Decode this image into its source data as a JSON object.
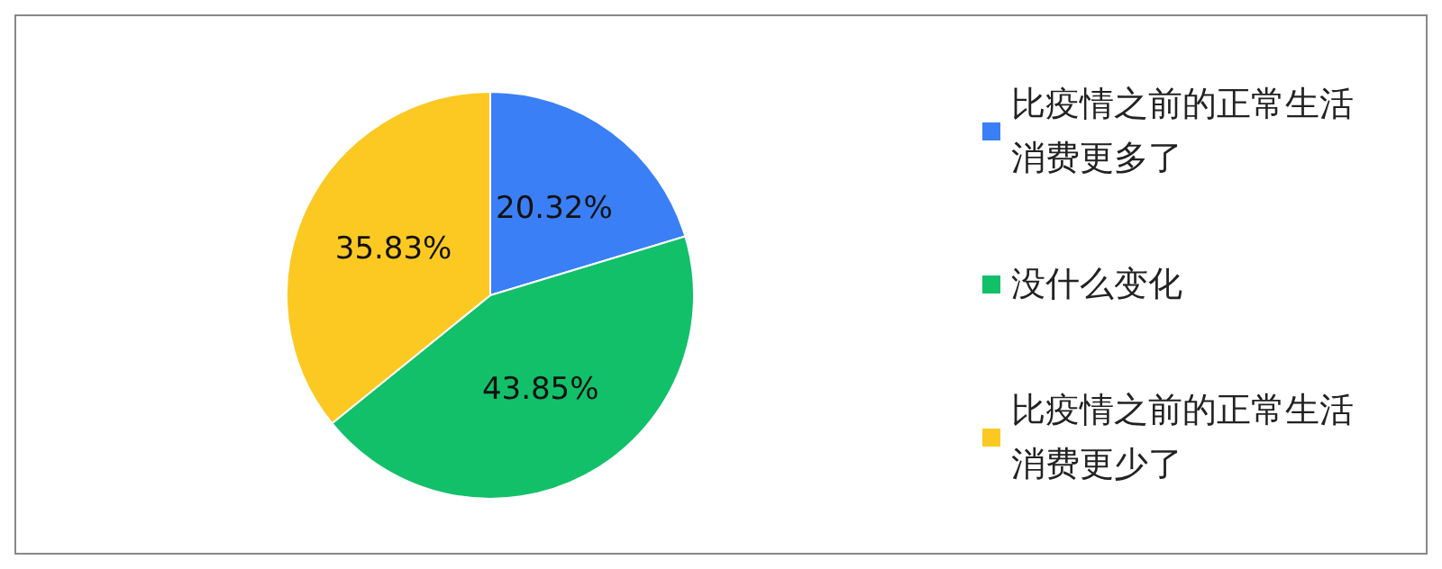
{
  "chart_data": {
    "type": "pie",
    "categories": [
      "比疫情之前的正常生活消费更多了",
      "没什么变化",
      "比疫情之前的正常生活消费更少了"
    ],
    "values": [
      20.32,
      43.85,
      35.83
    ],
    "colors": [
      "#3a7ff6",
      "#12c06a",
      "#fcc923"
    ],
    "value_labels": [
      "20.32%",
      "43.85%",
      "35.83%"
    ],
    "legend": "right"
  }
}
